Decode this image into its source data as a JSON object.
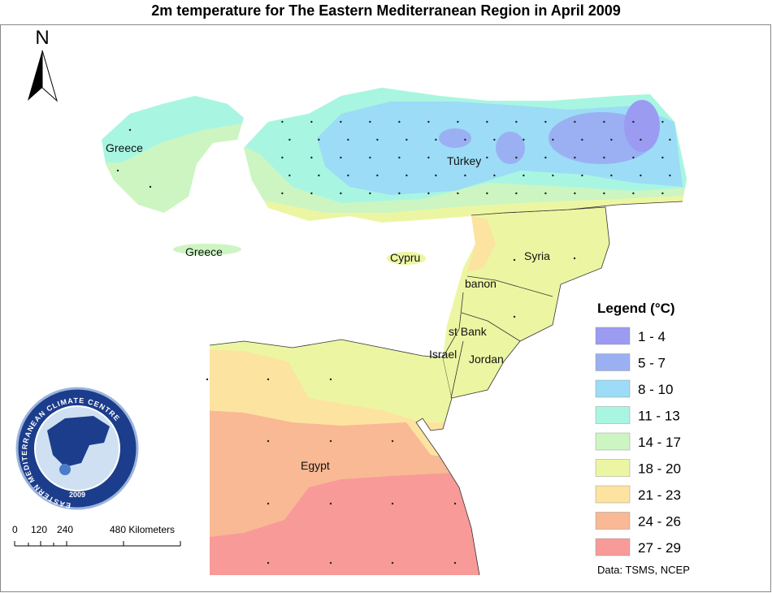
{
  "title": "2m temperature for The Eastern Mediterranean Region in April  2009",
  "north": "N",
  "places": [
    "Greece",
    "Turkey",
    "Greece",
    "Cypru",
    "Syria",
    "banon",
    "st Bank",
    "Israel",
    "Jordan",
    "Egypt"
  ],
  "legend": {
    "title": "Legend (°C)",
    "items": [
      {
        "label": "1 - 4",
        "color": "#9b9bf2"
      },
      {
        "label": "5 - 7",
        "color": "#9bb0f2"
      },
      {
        "label": "8 - 10",
        "color": "#9cdcf6"
      },
      {
        "label": "11 - 13",
        "color": "#a8f6e2"
      },
      {
        "label": "14 - 17",
        "color": "#cdf5c2"
      },
      {
        "label": "18 - 20",
        "color": "#ecf6a2"
      },
      {
        "label": "21 - 23",
        "color": "#fde3a0"
      },
      {
        "label": "24 - 26",
        "color": "#f8b994"
      },
      {
        "label": "27 - 29",
        "color": "#f89a98"
      }
    ]
  },
  "scale": {
    "labels": [
      "0",
      "120",
      "240",
      "480 Kilometers"
    ]
  },
  "source": "Data:  TSMS, NCEP",
  "logo": {
    "ring": "EASTERN MEDITERRANEAN CLIMATE CENTRE",
    "year": "2009"
  }
}
